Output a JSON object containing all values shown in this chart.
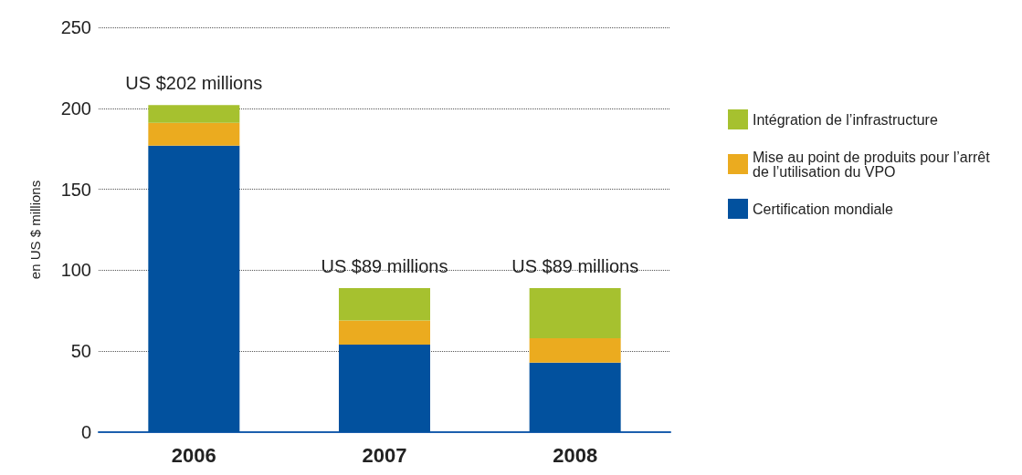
{
  "chart_data": {
    "type": "bar",
    "stacked": true,
    "ylabel": "en US $ millions",
    "categories": [
      "2006",
      "2007",
      "2008"
    ],
    "series": [
      {
        "name": "Certification mondiale",
        "color": "#02519e",
        "values": [
          177,
          54,
          43
        ]
      },
      {
        "name": "Mise au point de produits pour l’arrêt de l’utilisation du VPO",
        "color": "#ebab1f",
        "values": [
          14,
          15,
          15
        ]
      },
      {
        "name": "Intégration de l’infrastructure",
        "color": "#a6c12f",
        "values": [
          11,
          20,
          31
        ]
      }
    ],
    "totals": [
      "US $202 millions",
      "US $89 millions",
      "US $89 millions"
    ],
    "ylim": [
      0,
      250
    ],
    "yticks": [
      0,
      50,
      100,
      150,
      200,
      250
    ],
    "grid": "y",
    "legend": "right"
  }
}
